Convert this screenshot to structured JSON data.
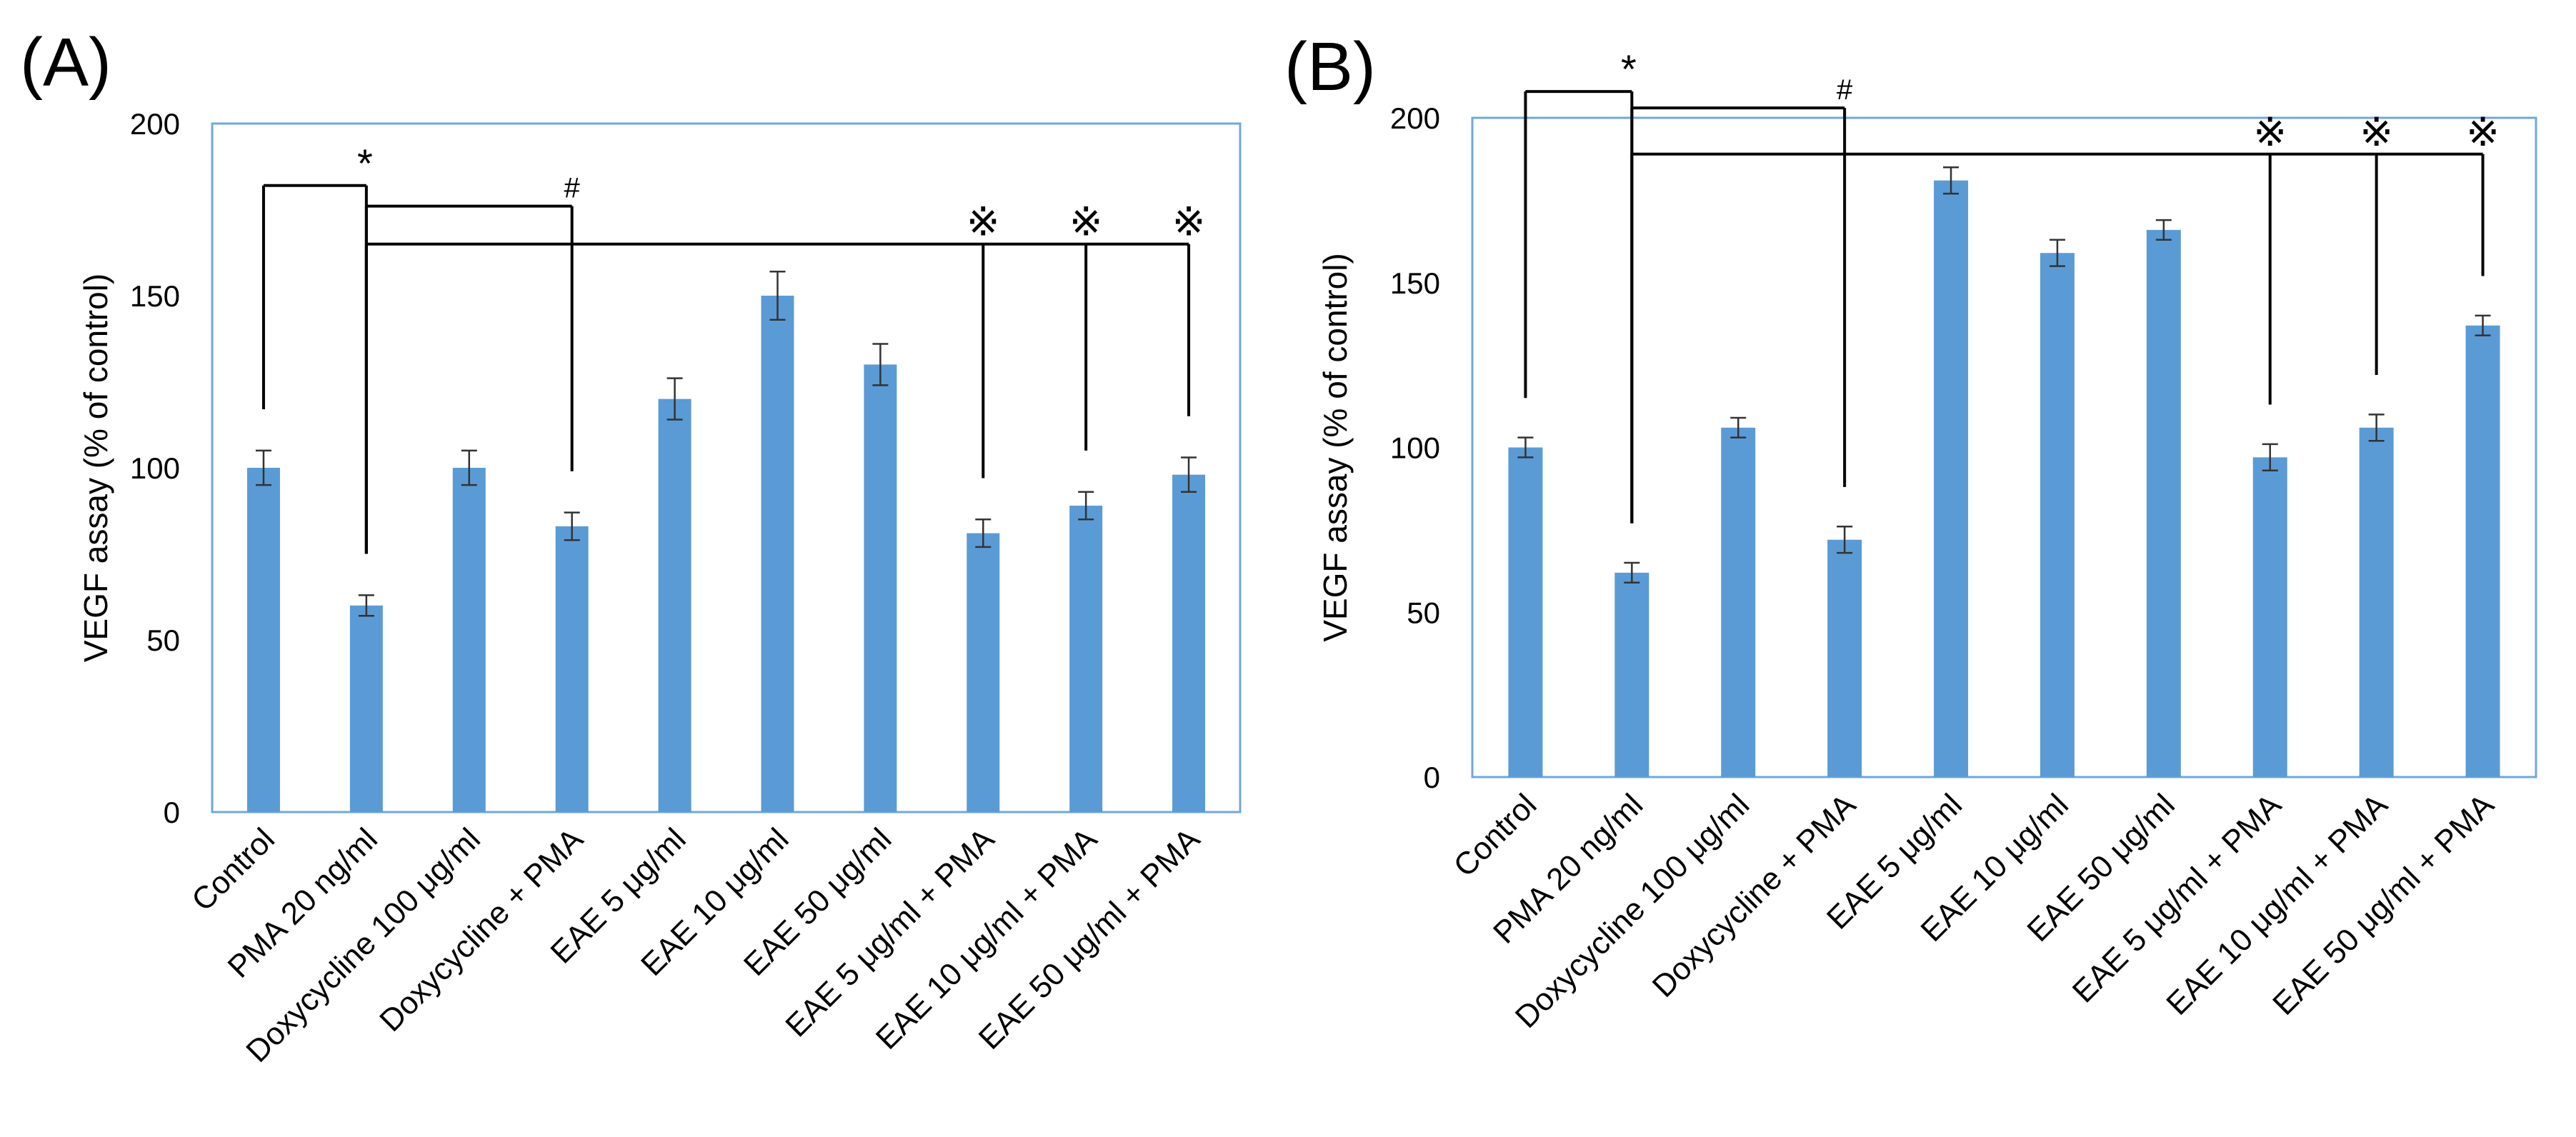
{
  "chart_data": [
    {
      "panel_label": "(A)",
      "type": "bar",
      "ylabel": "VEGF assay (% of control)",
      "ylim": [
        0,
        200
      ],
      "yticks": [
        0,
        50,
        100,
        150,
        200
      ],
      "grid": false,
      "bar_color": "#5b9bd5",
      "frame_color": "#6fa8dc",
      "categories": [
        "Control",
        "PMA 20 ng/ml",
        "Doxycycline 100 μg/ml",
        "Doxycycline + PMA",
        "EAE 5 μg/ml",
        "EAE 10 μg/ml",
        "EAE 50 μg/ml",
        "EAE 5 μg/ml + PMA",
        "EAE 10 μg/ml + PMA",
        "EAE 50 μg/ml + PMA"
      ],
      "values": [
        100,
        60,
        100,
        83,
        120,
        150,
        130,
        81,
        89,
        98
      ],
      "errors": [
        5,
        3,
        5,
        4,
        6,
        7,
        6,
        4,
        4,
        5
      ],
      "annotations": [
        {
          "symbol": "*",
          "meaning": "PMA vs Control",
          "ybar": 182,
          "cats": [
            0,
            1
          ]
        },
        {
          "symbol": "#",
          "meaning": "PMA vs Doxycycline + PMA",
          "ybar": 176,
          "cats": [
            1,
            3
          ]
        },
        {
          "symbol": "※",
          "meaning": "PMA vs EAE + PMA",
          "ybar": 165,
          "cats": [
            1,
            7,
            8,
            9
          ]
        }
      ]
    },
    {
      "panel_label": "(B)",
      "type": "bar",
      "ylabel": "VEGF assay (% of control)",
      "ylim": [
        0,
        200
      ],
      "yticks": [
        0,
        50,
        100,
        150,
        200
      ],
      "grid": false,
      "bar_color": "#5b9bd5",
      "frame_color": "#6fa8dc",
      "categories": [
        "Control",
        "PMA 20 ng/ml",
        "Doxycycline 100 μg/ml",
        "Doxycycline + PMA",
        "EAE 5 μg/ml",
        "EAE 10 μg/ml",
        "EAE 50 μg/ml",
        "EAE 5 μg/ml + PMA",
        "EAE 10 μg/ml + PMA",
        "EAE 50 μg/ml + PMA"
      ],
      "values": [
        100,
        62,
        106,
        72,
        181,
        159,
        166,
        97,
        106,
        137
      ],
      "errors": [
        3,
        3,
        3,
        4,
        4,
        4,
        3,
        4,
        4,
        3
      ],
      "annotations": [
        {
          "symbol": "*",
          "meaning": "PMA vs Control",
          "ybar": 208,
          "cats": [
            0,
            1
          ]
        },
        {
          "symbol": "#",
          "meaning": "PMA vs Doxycycline + PMA",
          "ybar": 203,
          "cats": [
            1,
            3
          ]
        },
        {
          "symbol": "※",
          "meaning": "PMA vs EAE + PMA",
          "ybar": 189,
          "cats": [
            1,
            7,
            8,
            9
          ]
        }
      ]
    }
  ]
}
